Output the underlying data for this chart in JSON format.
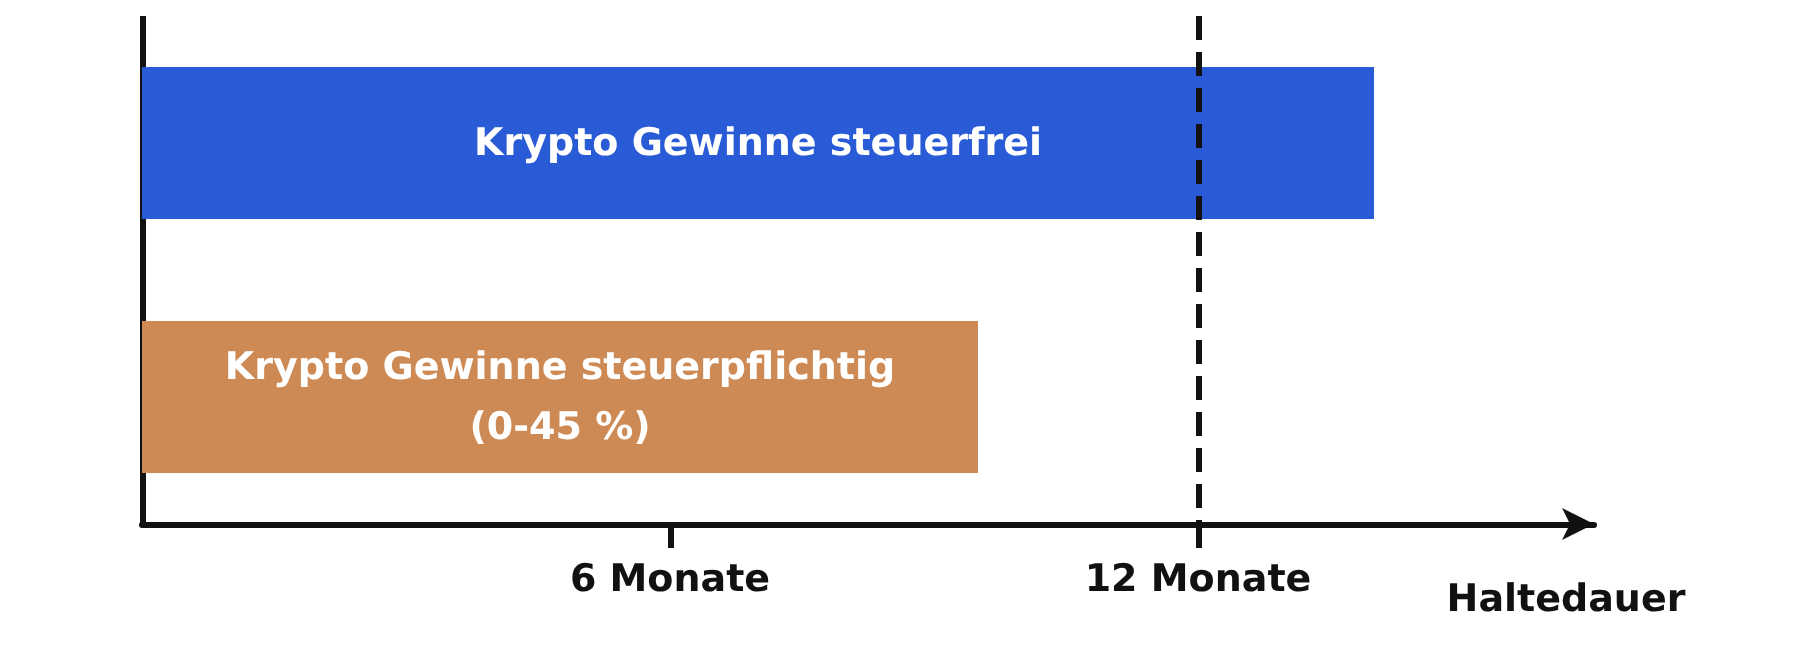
{
  "chart_data": {
    "type": "bar",
    "orientation": "horizontal",
    "xlabel": "Haltedauer",
    "categories": [
      "Krypto Gewinne steuerfrei",
      "Krypto Gewinne steuerpflichtig\n(0-45 %)"
    ],
    "values": [
      14,
      9.5
    ],
    "colors": [
      "#2a5bd7",
      "#cd8a55"
    ],
    "xlim": [
      0,
      16.5
    ],
    "xticks": [
      {
        "value": 6,
        "label": "6 Monate"
      },
      {
        "value": 12,
        "label": "12 Monate"
      }
    ],
    "ref_lines": [
      {
        "axis": "x",
        "value": 12,
        "color": "#111111",
        "line_style": "dashed"
      }
    ],
    "grid": false,
    "tick_labels": "x"
  }
}
